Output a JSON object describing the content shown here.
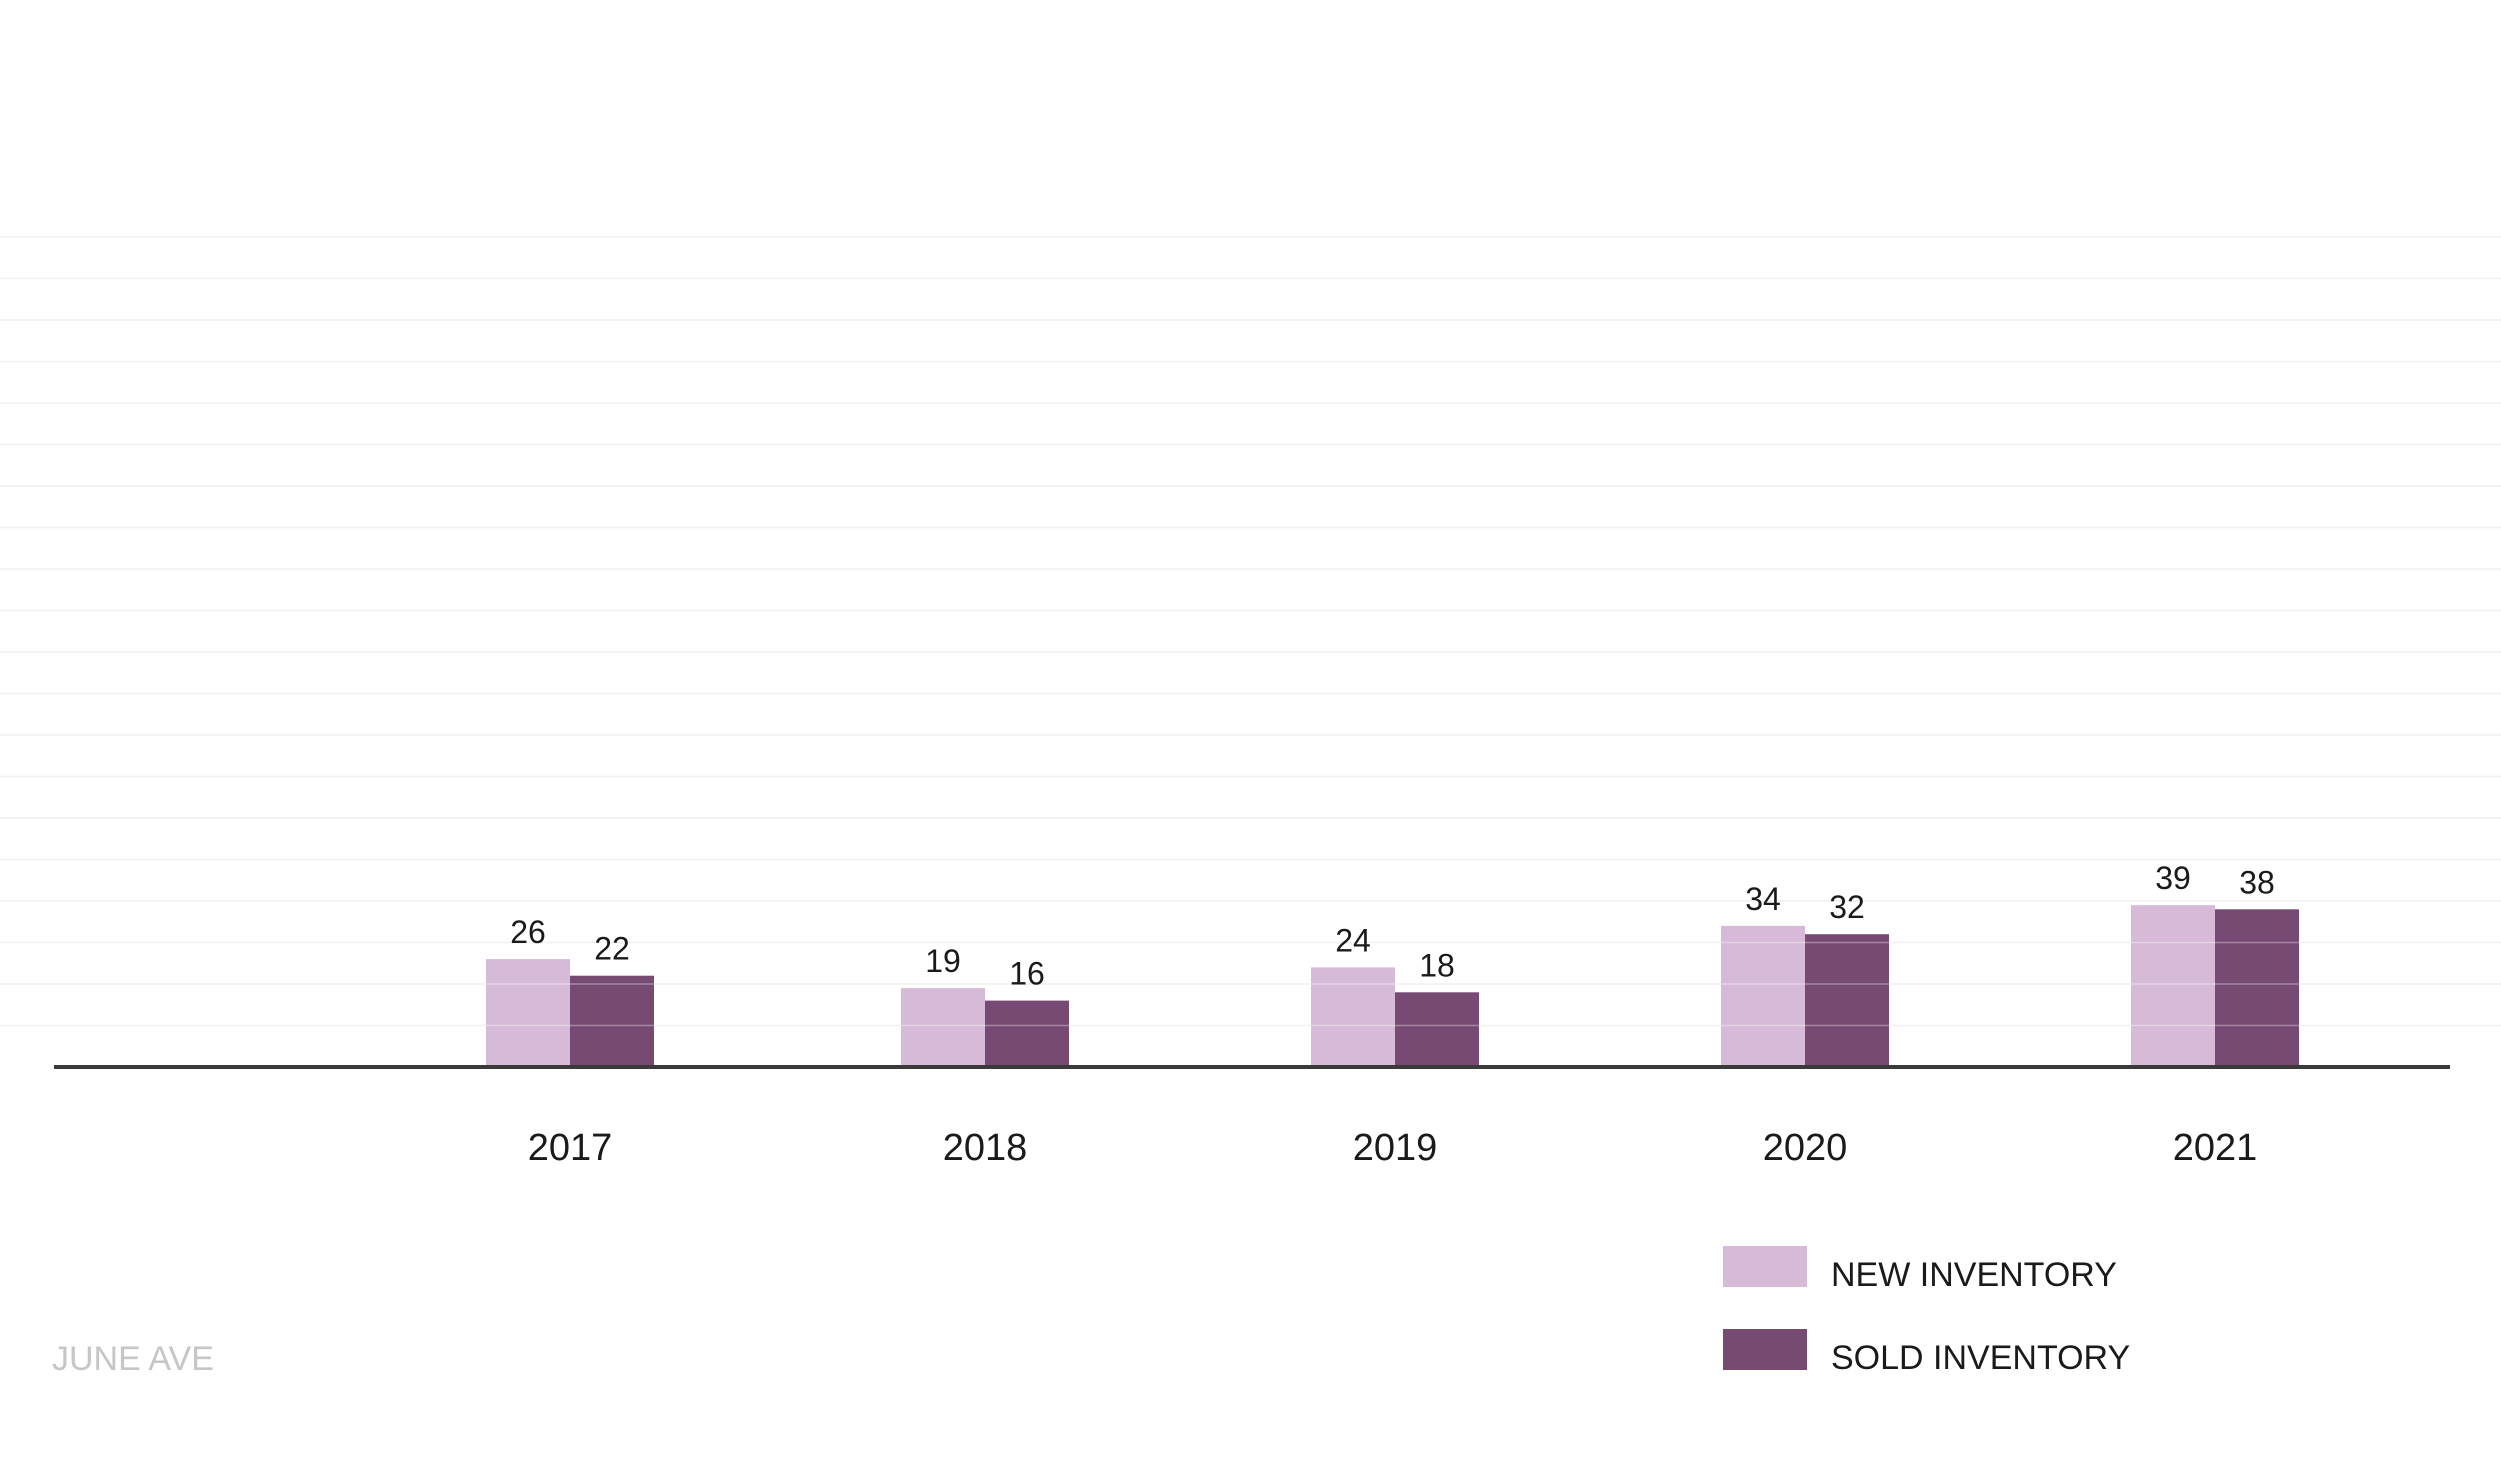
{
  "brand": "JUNE AVE",
  "colors": {
    "new_inventory": "#d7bad8",
    "sold_inventory": "#764a73",
    "axis": "#3a3a3a",
    "grid": "#ececec",
    "brand_text": "#c6c6c6"
  },
  "chart_data": {
    "type": "bar",
    "title": "",
    "xlabel": "",
    "ylabel": "",
    "categories": [
      "2017",
      "2018",
      "2019",
      "2020",
      "2021"
    ],
    "series": [
      {
        "name": "NEW INVENTORY",
        "values": [
          26,
          19,
          24,
          34,
          39
        ]
      },
      {
        "name": "SOLD INVENTORY",
        "values": [
          22,
          16,
          18,
          32,
          38
        ]
      }
    ],
    "ylim": [
      0,
      200
    ],
    "grid": true,
    "legend": "bottom-right"
  }
}
